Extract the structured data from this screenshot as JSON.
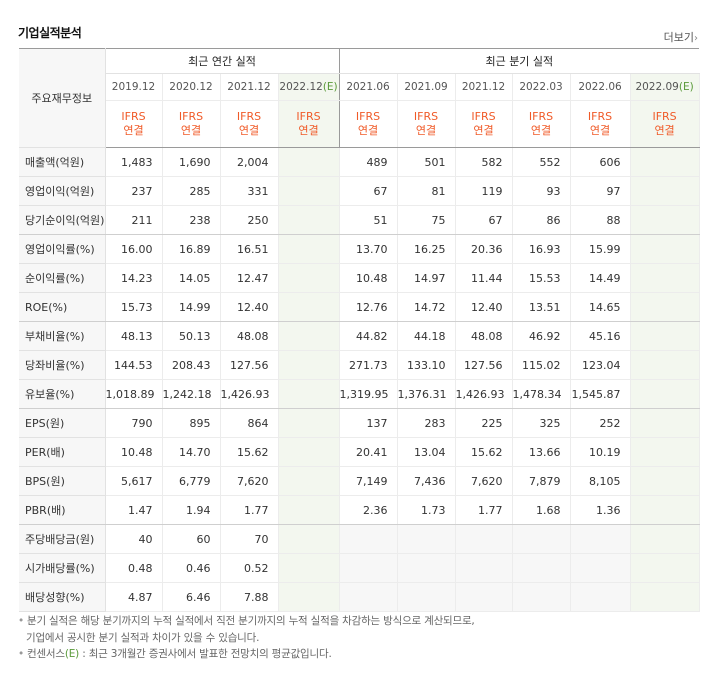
{
  "title": "기업실적분석",
  "more_label": "더보기",
  "more_chevron": "›",
  "group_annual": "최근 연간 실적",
  "group_quarter": "최근 분기 실적",
  "row_header_label": "주요재무정보",
  "periods": [
    {
      "label": "2019.12",
      "est": false
    },
    {
      "label": "2020.12",
      "est": false
    },
    {
      "label": "2021.12",
      "est": false
    },
    {
      "label": "2022.12",
      "est": true
    },
    {
      "label": "2021.06",
      "est": false
    },
    {
      "label": "2021.09",
      "est": false
    },
    {
      "label": "2021.12",
      "est": false
    },
    {
      "label": "2022.03",
      "est": false
    },
    {
      "label": "2022.06",
      "est": false
    },
    {
      "label": "2022.09",
      "est": true
    }
  ],
  "est_mark": "(E)",
  "ifrs_line1": "IFRS",
  "ifrs_line2": "연결",
  "rows": [
    {
      "label": "매출액(억원)",
      "values": [
        "1,483",
        "1,690",
        "2,004",
        "",
        "489",
        "501",
        "582",
        "552",
        "606",
        ""
      ]
    },
    {
      "label": "영업이익(억원)",
      "values": [
        "237",
        "285",
        "331",
        "",
        "67",
        "81",
        "119",
        "93",
        "97",
        ""
      ]
    },
    {
      "label": "당기순이익(억원)",
      "values": [
        "211",
        "238",
        "250",
        "",
        "51",
        "75",
        "67",
        "86",
        "88",
        ""
      ]
    },
    {
      "label": "영업이익률(%)",
      "values": [
        "16.00",
        "16.89",
        "16.51",
        "",
        "13.70",
        "16.25",
        "20.36",
        "16.93",
        "15.99",
        ""
      ]
    },
    {
      "label": "순이익률(%)",
      "values": [
        "14.23",
        "14.05",
        "12.47",
        "",
        "10.48",
        "14.97",
        "11.44",
        "15.53",
        "14.49",
        ""
      ]
    },
    {
      "label": "ROE(%)",
      "values": [
        "15.73",
        "14.99",
        "12.40",
        "",
        "12.76",
        "14.72",
        "12.40",
        "13.51",
        "14.65",
        ""
      ]
    },
    {
      "label": "부채비율(%)",
      "values": [
        "48.13",
        "50.13",
        "48.08",
        "",
        "44.82",
        "44.18",
        "48.08",
        "46.92",
        "45.16",
        ""
      ]
    },
    {
      "label": "당좌비율(%)",
      "values": [
        "144.53",
        "208.43",
        "127.56",
        "",
        "271.73",
        "133.10",
        "127.56",
        "115.02",
        "123.04",
        ""
      ]
    },
    {
      "label": "유보율(%)",
      "values": [
        "1,018.89",
        "1,242.18",
        "1,426.93",
        "",
        "1,319.95",
        "1,376.31",
        "1,426.93",
        "1,478.34",
        "1,545.87",
        ""
      ]
    },
    {
      "label": "EPS(원)",
      "values": [
        "790",
        "895",
        "864",
        "",
        "137",
        "283",
        "225",
        "325",
        "252",
        ""
      ]
    },
    {
      "label": "PER(배)",
      "values": [
        "10.48",
        "14.70",
        "15.62",
        "",
        "20.41",
        "13.04",
        "15.62",
        "13.66",
        "10.19",
        ""
      ]
    },
    {
      "label": "BPS(원)",
      "values": [
        "5,617",
        "6,779",
        "7,620",
        "",
        "7,149",
        "7,436",
        "7,620",
        "7,879",
        "8,105",
        ""
      ]
    },
    {
      "label": "PBR(배)",
      "values": [
        "1.47",
        "1.94",
        "1.77",
        "",
        "2.36",
        "1.73",
        "1.77",
        "1.68",
        "1.36",
        ""
      ]
    },
    {
      "label": "주당배당금(원)",
      "values": [
        "40",
        "60",
        "70",
        "",
        "",
        "",
        "",
        "",
        "",
        ""
      ]
    },
    {
      "label": "시가배당률(%)",
      "values": [
        "0.48",
        "0.46",
        "0.52",
        "",
        "",
        "",
        "",
        "",
        "",
        ""
      ]
    },
    {
      "label": "배당성향(%)",
      "values": [
        "4.87",
        "6.46",
        "7.88",
        "",
        "",
        "",
        "",
        "",
        "",
        ""
      ]
    }
  ],
  "notes": {
    "line1": "분기 실적은 해당 분기까지의 누적 실적에서 직전 분기까지의 누적 실적을 차감하는 방식으로 계산되므로,",
    "line2": "기업에서 공시한 분기 실적과 차이가 있을 수 있습니다.",
    "line3_prefix": "컨센서스",
    "line3_mark": "(E)",
    "line3_suffix": " : 최근 3개월간 증권사에서 발표한 전망치의 평균값입니다."
  }
}
